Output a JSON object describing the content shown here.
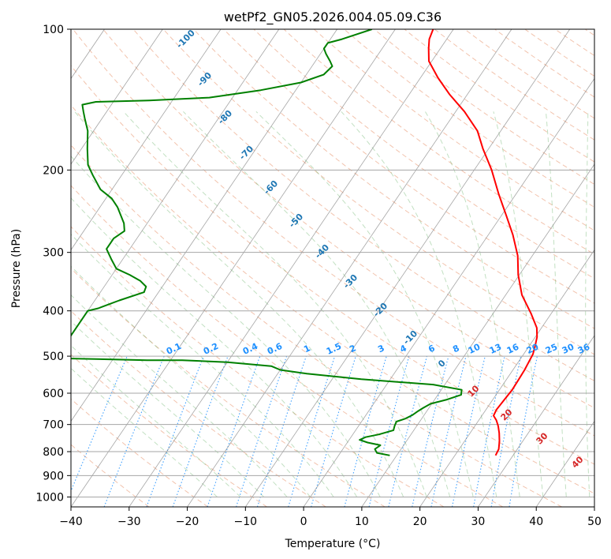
{
  "chart_data": {
    "type": "line",
    "subtype": "skew-T log-P sounding",
    "title": "wetPf2_GN05.2026.004.05.09.C36",
    "xlabel": "Temperature (°C)",
    "ylabel": "Pressure (hPa)",
    "xlim": [
      -40,
      50
    ],
    "ylim": [
      1050,
      100
    ],
    "y_scale": "log",
    "x_ticks": [
      -40,
      -30,
      -20,
      -10,
      0,
      10,
      20,
      30,
      40,
      50
    ],
    "y_ticks": [
      100,
      200,
      300,
      400,
      500,
      600,
      700,
      800,
      900,
      1000
    ],
    "grid": true,
    "series": [
      {
        "color": "#ff0000",
        "points": [
          [
            27.0,
            815
          ],
          [
            26.8,
            790
          ],
          [
            26.0,
            760
          ],
          [
            25.0,
            730
          ],
          [
            24.0,
            705
          ],
          [
            23.0,
            685
          ],
          [
            22.0,
            670
          ],
          [
            21.8,
            650
          ],
          [
            22.0,
            620
          ],
          [
            22.2,
            590
          ],
          [
            22.1,
            560
          ],
          [
            22.0,
            535
          ],
          [
            21.8,
            515
          ],
          [
            21.6,
            495
          ],
          [
            21.0,
            475
          ],
          [
            20.3,
            455
          ],
          [
            19.2,
            435
          ],
          [
            16.5,
            405
          ],
          [
            12.8,
            370
          ],
          [
            9.8,
            335
          ],
          [
            7.5,
            305
          ],
          [
            4.2,
            275
          ],
          [
            0.8,
            250
          ],
          [
            -3.0,
            225
          ],
          [
            -7.0,
            200
          ],
          [
            -11.0,
            180
          ],
          [
            -14.0,
            165
          ],
          [
            -18.5,
            150
          ],
          [
            -23.0,
            138
          ],
          [
            -27.0,
            127
          ],
          [
            -30.5,
            117
          ],
          [
            -32.0,
            110
          ],
          [
            -33.0,
            105
          ],
          [
            -33.5,
            100
          ]
        ]
      },
      {
        "color": "#008000",
        "points": [
          [
            8.8,
            815
          ],
          [
            6.3,
            805
          ],
          [
            5.5,
            790
          ],
          [
            6.0,
            775
          ],
          [
            3.5,
            765
          ],
          [
            1.8,
            755
          ],
          [
            2.5,
            745
          ],
          [
            4.5,
            735
          ],
          [
            6.5,
            720
          ],
          [
            6.2,
            705
          ],
          [
            6.0,
            690
          ],
          [
            7.2,
            680
          ],
          [
            8.0,
            668
          ],
          [
            8.5,
            655
          ],
          [
            9.0,
            645
          ],
          [
            9.8,
            632
          ],
          [
            12.0,
            620
          ],
          [
            14.0,
            605
          ],
          [
            13.5,
            590
          ],
          [
            8.0,
            575
          ],
          [
            -5.0,
            560
          ],
          [
            -15.0,
            545
          ],
          [
            -20.0,
            535
          ],
          [
            -22.0,
            525
          ],
          [
            -30.0,
            515
          ],
          [
            -38.0,
            510
          ],
          [
            -44.0,
            510
          ],
          [
            -60.0,
            505
          ],
          [
            -60.0,
            400
          ],
          [
            -58.5,
            395
          ],
          [
            -55.8,
            380
          ],
          [
            -52.5,
            365
          ],
          [
            -52.8,
            355
          ],
          [
            -54.5,
            345
          ],
          [
            -57.0,
            335
          ],
          [
            -60.0,
            325
          ],
          [
            -62.0,
            310
          ],
          [
            -64.0,
            295
          ],
          [
            -64.0,
            280
          ],
          [
            -63.0,
            270
          ],
          [
            -64.0,
            260
          ],
          [
            -67.0,
            240
          ],
          [
            -69.0,
            230
          ],
          [
            -72.0,
            220
          ],
          [
            -75.0,
            205
          ],
          [
            -77.0,
            195
          ],
          [
            -79.0,
            180
          ],
          [
            -81.0,
            165
          ],
          [
            -83.0,
            155
          ],
          [
            -84.0,
            150
          ],
          [
            -85.0,
            145
          ],
          [
            -83.0,
            143
          ],
          [
            -74.0,
            142
          ],
          [
            -64.0,
            140
          ],
          [
            -56.0,
            135
          ],
          [
            -50.0,
            130
          ],
          [
            -47.0,
            125
          ],
          [
            -46.5,
            120
          ],
          [
            -47.5,
            117
          ],
          [
            -49.0,
            113
          ],
          [
            -50.0,
            110
          ],
          [
            -50.0,
            107
          ],
          [
            -48.0,
            105
          ],
          [
            -44.0,
            100
          ]
        ]
      }
    ],
    "dry_adiabat_labels": [
      "-100",
      "-90",
      "-80",
      "-70",
      "-60",
      "-50",
      "-40",
      "-30",
      "-20",
      "-10",
      "0"
    ],
    "moist_adiabat_labels": [
      "10",
      "20",
      "30",
      "40"
    ],
    "mixing_ratio_labels": [
      "0.1",
      "0.2",
      "0.4",
      "0.6",
      "1",
      "1.5",
      "2",
      "3",
      "4",
      "6",
      "8",
      "10",
      "13",
      "16",
      "20",
      "25",
      "30",
      "36"
    ]
  }
}
